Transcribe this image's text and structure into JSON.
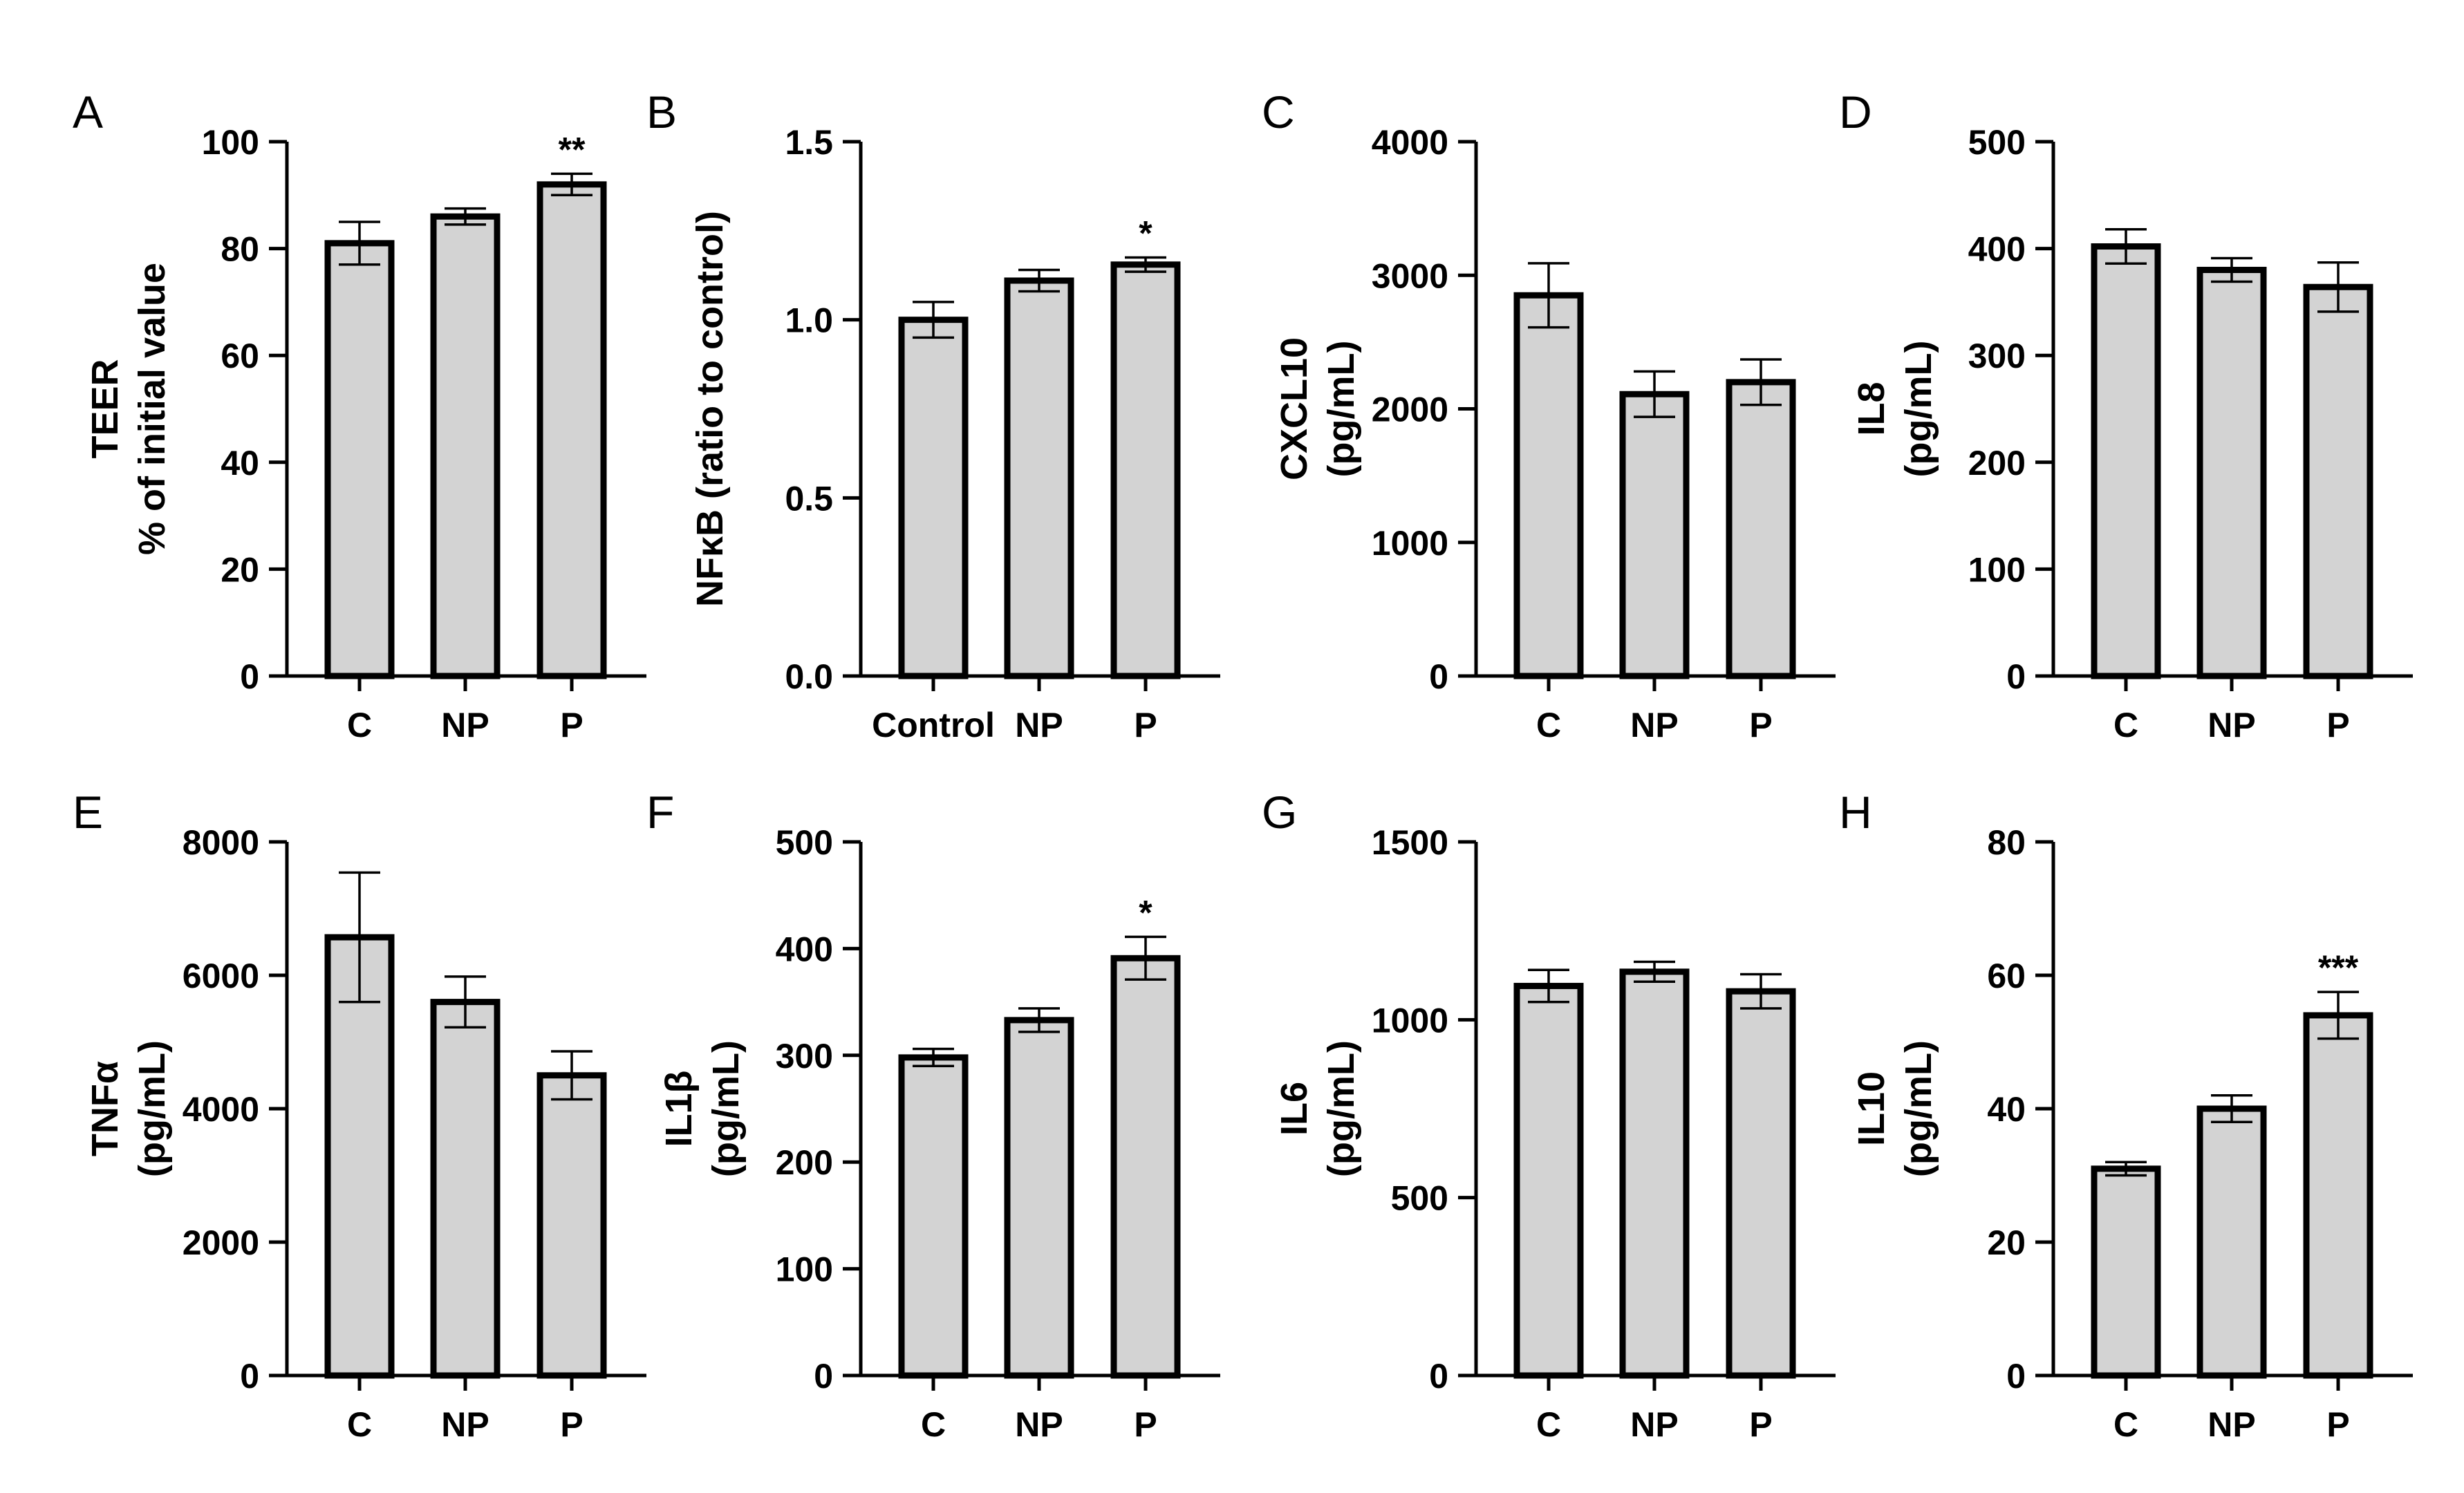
{
  "colors": {
    "bar_fill": "#d3d3d3",
    "stroke": "#000000",
    "background": "#ffffff"
  },
  "chart_data": [
    {
      "panel": "A",
      "type": "bar",
      "categories": [
        "C",
        "NP",
        "P"
      ],
      "values": [
        81,
        86,
        92
      ],
      "errors": [
        4,
        1.5,
        2
      ],
      "significance": [
        "",
        "",
        "**"
      ],
      "ylabel_lines": [
        "TEER",
        "% of initial value"
      ],
      "ylim": [
        0,
        100
      ],
      "yticks": [
        0,
        20,
        40,
        60,
        80,
        100
      ],
      "ytick_labels": [
        "0",
        "20",
        "40",
        "60",
        "80",
        "100"
      ]
    },
    {
      "panel": "B",
      "type": "bar",
      "categories": [
        "Control",
        "NP",
        "P"
      ],
      "values": [
        1.0,
        1.11,
        1.155
      ],
      "errors": [
        0.05,
        0.03,
        0.02
      ],
      "significance": [
        "",
        "",
        "*"
      ],
      "ylabel_lines": [
        "NFκB (ratio to control)"
      ],
      "ylim": [
        0,
        1.5
      ],
      "yticks": [
        0,
        0.5,
        1.0,
        1.5
      ],
      "ytick_labels": [
        "0.0",
        "0.5",
        "1.0",
        "1.5"
      ]
    },
    {
      "panel": "C",
      "type": "bar",
      "categories": [
        "C",
        "NP",
        "P"
      ],
      "values": [
        2850,
        2110,
        2200
      ],
      "errors": [
        240,
        170,
        170
      ],
      "significance": [
        "",
        "",
        ""
      ],
      "ylabel_lines": [
        "CXCL10",
        "(pg/mL)"
      ],
      "ylim": [
        0,
        4000
      ],
      "yticks": [
        0,
        1000,
        2000,
        3000,
        4000
      ],
      "ytick_labels": [
        "0",
        "1000",
        "2000",
        "3000",
        "4000"
      ]
    },
    {
      "panel": "D",
      "type": "bar",
      "categories": [
        "C",
        "NP",
        "P"
      ],
      "values": [
        402,
        380,
        364
      ],
      "errors": [
        16,
        11,
        23
      ],
      "significance": [
        "",
        "",
        ""
      ],
      "ylabel_lines": [
        "IL8",
        "(pg/mL)"
      ],
      "ylim": [
        0,
        500
      ],
      "yticks": [
        0,
        100,
        200,
        300,
        400,
        500
      ],
      "ytick_labels": [
        "0",
        "100",
        "200",
        "300",
        "400",
        "500"
      ]
    },
    {
      "panel": "E",
      "type": "bar",
      "categories": [
        "C",
        "NP",
        "P"
      ],
      "values": [
        6570,
        5600,
        4500
      ],
      "errors": [
        970,
        380,
        360
      ],
      "significance": [
        "",
        "",
        ""
      ],
      "ylabel_lines": [
        "TNFα",
        "(pg/mL)"
      ],
      "ylim": [
        0,
        8000
      ],
      "yticks": [
        0,
        2000,
        4000,
        6000,
        8000
      ],
      "ytick_labels": [
        "0",
        "2000",
        "4000",
        "6000",
        "8000"
      ]
    },
    {
      "panel": "F",
      "type": "bar",
      "categories": [
        "C",
        "NP",
        "P"
      ],
      "values": [
        298,
        333,
        391
      ],
      "errors": [
        8,
        11,
        20
      ],
      "significance": [
        "",
        "",
        "*"
      ],
      "ylabel_lines": [
        "IL1β",
        "(pg/mL)"
      ],
      "ylim": [
        0,
        500
      ],
      "yticks": [
        0,
        100,
        200,
        300,
        400,
        500
      ],
      "ytick_labels": [
        "0",
        "100",
        "200",
        "300",
        "400",
        "500"
      ]
    },
    {
      "panel": "G",
      "type": "bar",
      "categories": [
        "C",
        "NP",
        "P"
      ],
      "values": [
        1095,
        1135,
        1080
      ],
      "errors": [
        45,
        28,
        48
      ],
      "significance": [
        "",
        "",
        ""
      ],
      "ylabel_lines": [
        "IL6",
        "(pg/mL)"
      ],
      "ylim": [
        0,
        1500
      ],
      "yticks": [
        0,
        500,
        1000,
        1500
      ],
      "ytick_labels": [
        "0",
        "500",
        "1000",
        "1500"
      ]
    },
    {
      "panel": "H",
      "type": "bar",
      "categories": [
        "C",
        "NP",
        "P"
      ],
      "values": [
        31,
        40,
        54
      ],
      "errors": [
        1,
        2,
        3.5
      ],
      "significance": [
        "",
        "",
        "***"
      ],
      "ylabel_lines": [
        "IL10",
        "(pg/mL)"
      ],
      "ylim": [
        0,
        80
      ],
      "yticks": [
        0,
        20,
        40,
        60,
        80
      ],
      "ytick_labels": [
        "0",
        "20",
        "40",
        "60",
        "80"
      ]
    }
  ]
}
